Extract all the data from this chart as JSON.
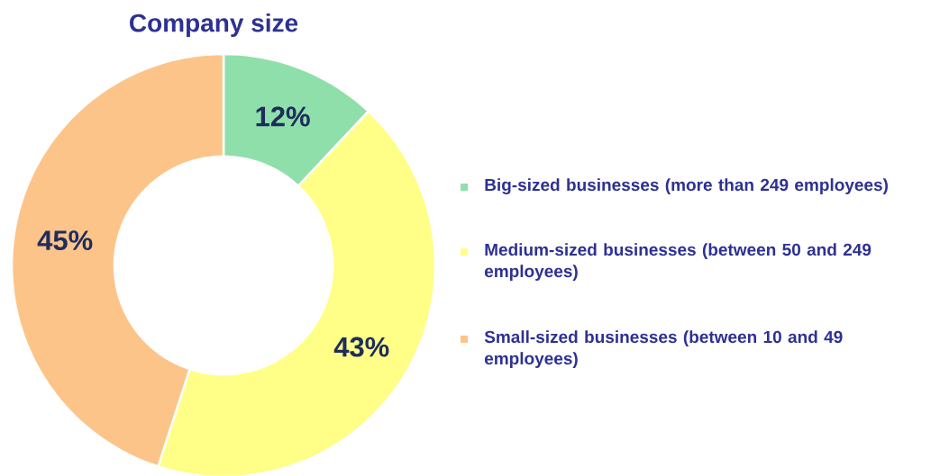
{
  "chart_data": {
    "type": "donut",
    "title": "Company size",
    "categories": [
      "Big-sized businesses (more than 249 employees)",
      "Medium-sized businesses (between 50 and 249 employees)",
      "Small-sized businesses (between 10 and 49 employees)"
    ],
    "values": [
      12,
      43,
      45
    ],
    "colors": [
      "#8fdfaa",
      "#ffff88",
      "#fdc48a"
    ],
    "value_labels": [
      "12%",
      "43%",
      "45%"
    ],
    "legend": "right"
  }
}
